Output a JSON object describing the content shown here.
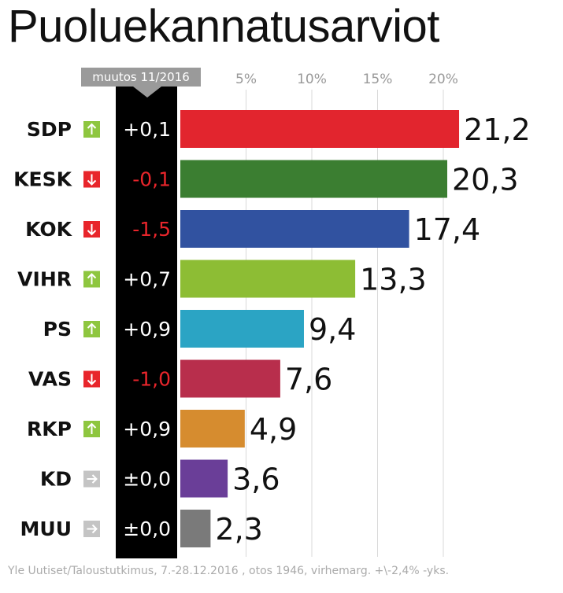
{
  "title": "Puoluekannatusarviot",
  "change_header": "muutos 11/2016",
  "footnote": "Yle Uutiset/Taloustutkimus, 7.-28.12.2016 , otos 1946, virhemarg. +\\-2,4% -yks.",
  "colors": {
    "up": "#8ec63f",
    "down": "#e8252b",
    "neutral": "#c4c4c4"
  },
  "chart_data": {
    "type": "bar",
    "orientation": "horizontal",
    "title": "Puoluekannatusarviot",
    "x_ticks": [
      "5%",
      "10%",
      "15%",
      "20%"
    ],
    "x_tick_values": [
      5,
      10,
      15,
      20
    ],
    "xlim": [
      0,
      23
    ],
    "grid": true,
    "categories": [
      "SDP",
      "KESK",
      "KOK",
      "VIHR",
      "PS",
      "VAS",
      "RKP",
      "KD",
      "MUU"
    ],
    "values": [
      21.2,
      20.3,
      17.4,
      13.3,
      9.4,
      7.6,
      4.9,
      3.6,
      2.3
    ],
    "value_labels": [
      "21,2",
      "20,3",
      "17,4",
      "13,3",
      "9,4",
      "7,6",
      "4,9",
      "3,6",
      "2,3"
    ],
    "changes": [
      "+0,1",
      "-0,1",
      "-1,5",
      "+0,7",
      "+0,9",
      "-1,0",
      "+0,9",
      "±0,0",
      "±0,0"
    ],
    "trend": [
      "up",
      "down",
      "down",
      "up",
      "up",
      "down",
      "up",
      "neutral",
      "neutral"
    ],
    "bar_colors": [
      "#e2252e",
      "#3b7e31",
      "#3152a0",
      "#8dbd34",
      "#2ba4c4",
      "#b82e4c",
      "#d68c2f",
      "#6a3e98",
      "#7a7a7a"
    ]
  }
}
